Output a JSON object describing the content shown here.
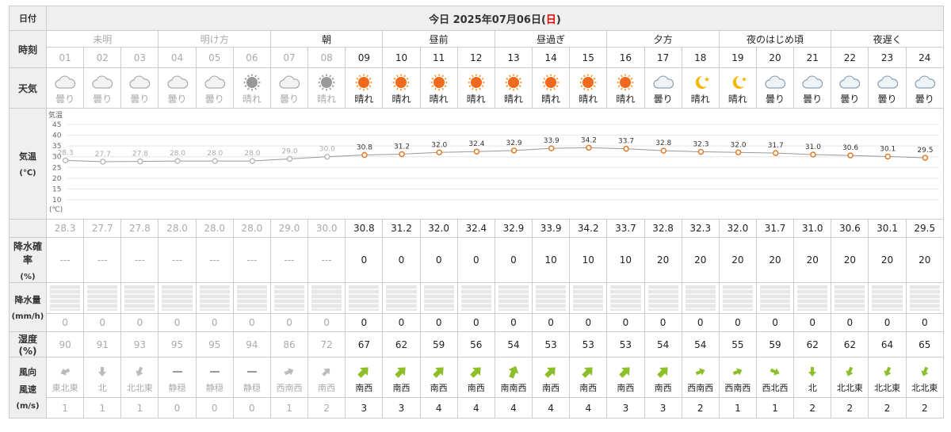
{
  "header": {
    "date_label": "日付",
    "today_prefix": "今日 2025年07月06日(",
    "weekday": "日",
    "today_suffix": ")"
  },
  "row_labels": {
    "time": "時刻",
    "weather": "天気",
    "temp": "気温",
    "temp_unit": "(℃)",
    "prob": "降水確率",
    "prob_unit": "(%)",
    "rain": "降水量",
    "rain_unit": "(mm/h)",
    "humidity": "湿度(%)",
    "wind": "風向",
    "speed": "風速",
    "speed_unit": "(m/s)"
  },
  "periods": [
    {
      "label": "未明",
      "span": 3,
      "past": true
    },
    {
      "label": "明け方",
      "span": 3,
      "past": true
    },
    {
      "label": "朝",
      "span": 3,
      "past": false
    },
    {
      "label": "昼前",
      "span": 3,
      "past": false
    },
    {
      "label": "昼過ぎ",
      "span": 3,
      "past": false
    },
    {
      "label": "夕方",
      "span": 3,
      "past": false
    },
    {
      "label": "夜のはじめ頃",
      "span": 3,
      "past": false
    },
    {
      "label": "夜遅く",
      "span": 3,
      "past": false
    }
  ],
  "hours": [
    {
      "hour": "01",
      "past": true,
      "weather": "曇り",
      "icon": "cloud-icon",
      "temp": "28.3",
      "prob": "---",
      "rain": "0",
      "humidity": "90",
      "wind_dir": "東北東",
      "wind_speed": "1",
      "wind_icon": "wind-arrow-icon"
    },
    {
      "hour": "02",
      "past": true,
      "weather": "曇り",
      "icon": "cloud-icon",
      "temp": "27.7",
      "prob": "---",
      "rain": "0",
      "humidity": "91",
      "wind_dir": "北",
      "wind_speed": "1",
      "wind_icon": "wind-arrow-icon"
    },
    {
      "hour": "03",
      "past": true,
      "weather": "曇り",
      "icon": "cloud-icon",
      "temp": "27.8",
      "prob": "---",
      "rain": "0",
      "humidity": "93",
      "wind_dir": "北北東",
      "wind_speed": "1",
      "wind_icon": "wind-arrow-icon"
    },
    {
      "hour": "04",
      "past": true,
      "weather": "曇り",
      "icon": "cloud-icon",
      "temp": "28.0",
      "prob": "---",
      "rain": "0",
      "humidity": "95",
      "wind_dir": "静穏",
      "wind_speed": "0",
      "wind_icon": "calm-icon"
    },
    {
      "hour": "05",
      "past": true,
      "weather": "曇り",
      "icon": "cloud-icon",
      "temp": "28.0",
      "prob": "---",
      "rain": "0",
      "humidity": "95",
      "wind_dir": "静穏",
      "wind_speed": "0",
      "wind_icon": "calm-icon"
    },
    {
      "hour": "06",
      "past": true,
      "weather": "晴れ",
      "icon": "sun-icon",
      "temp": "28.0",
      "prob": "---",
      "rain": "0",
      "humidity": "94",
      "wind_dir": "静穏",
      "wind_speed": "0",
      "wind_icon": "calm-icon"
    },
    {
      "hour": "07",
      "past": true,
      "weather": "曇り",
      "icon": "cloud-icon",
      "temp": "29.0",
      "prob": "---",
      "rain": "0",
      "humidity": "86",
      "wind_dir": "西南西",
      "wind_speed": "1",
      "wind_icon": "wind-arrow-icon"
    },
    {
      "hour": "08",
      "past": true,
      "weather": "晴れ",
      "icon": "sun-icon",
      "temp": "30.0",
      "prob": "---",
      "rain": "0",
      "humidity": "72",
      "wind_dir": "南西",
      "wind_speed": "2",
      "wind_icon": "wind-arrow-icon"
    },
    {
      "hour": "09",
      "past": false,
      "weather": "晴れ",
      "icon": "sun-icon",
      "temp": "30.8",
      "prob": "0",
      "rain": "0",
      "humidity": "67",
      "wind_dir": "南西",
      "wind_speed": "3",
      "wind_icon": "wind-arrow-icon"
    },
    {
      "hour": "10",
      "past": false,
      "weather": "晴れ",
      "icon": "sun-icon",
      "temp": "31.2",
      "prob": "0",
      "rain": "0",
      "humidity": "62",
      "wind_dir": "南西",
      "wind_speed": "3",
      "wind_icon": "wind-arrow-icon"
    },
    {
      "hour": "11",
      "past": false,
      "weather": "晴れ",
      "icon": "sun-icon",
      "temp": "32.0",
      "prob": "0",
      "rain": "0",
      "humidity": "59",
      "wind_dir": "南西",
      "wind_speed": "4",
      "wind_icon": "wind-arrow-icon"
    },
    {
      "hour": "12",
      "past": false,
      "weather": "晴れ",
      "icon": "sun-icon",
      "temp": "32.4",
      "prob": "0",
      "rain": "0",
      "humidity": "56",
      "wind_dir": "南西",
      "wind_speed": "4",
      "wind_icon": "wind-arrow-icon"
    },
    {
      "hour": "13",
      "past": false,
      "weather": "晴れ",
      "icon": "sun-icon",
      "temp": "32.9",
      "prob": "0",
      "rain": "0",
      "humidity": "54",
      "wind_dir": "南南西",
      "wind_speed": "4",
      "wind_icon": "wind-arrow-icon"
    },
    {
      "hour": "14",
      "past": false,
      "weather": "晴れ",
      "icon": "sun-icon",
      "temp": "33.9",
      "prob": "10",
      "rain": "0",
      "humidity": "53",
      "wind_dir": "南西",
      "wind_speed": "4",
      "wind_icon": "wind-arrow-icon"
    },
    {
      "hour": "15",
      "past": false,
      "weather": "晴れ",
      "icon": "sun-icon",
      "temp": "34.2",
      "prob": "10",
      "rain": "0",
      "humidity": "53",
      "wind_dir": "南西",
      "wind_speed": "4",
      "wind_icon": "wind-arrow-icon"
    },
    {
      "hour": "16",
      "past": false,
      "weather": "晴れ",
      "icon": "sun-icon",
      "temp": "33.7",
      "prob": "10",
      "rain": "0",
      "humidity": "53",
      "wind_dir": "南西",
      "wind_speed": "3",
      "wind_icon": "wind-arrow-icon"
    },
    {
      "hour": "17",
      "past": false,
      "weather": "曇り",
      "icon": "cloud-icon",
      "temp": "32.8",
      "prob": "20",
      "rain": "0",
      "humidity": "54",
      "wind_dir": "南西",
      "wind_speed": "3",
      "wind_icon": "wind-arrow-icon"
    },
    {
      "hour": "18",
      "past": false,
      "weather": "晴れ",
      "icon": "moon-icon",
      "temp": "32.3",
      "prob": "20",
      "rain": "0",
      "humidity": "54",
      "wind_dir": "西南西",
      "wind_speed": "2",
      "wind_icon": "wind-arrow-icon"
    },
    {
      "hour": "19",
      "past": false,
      "weather": "晴れ",
      "icon": "moon-icon",
      "temp": "32.0",
      "prob": "20",
      "rain": "0",
      "humidity": "55",
      "wind_dir": "西南西",
      "wind_speed": "1",
      "wind_icon": "wind-arrow-icon"
    },
    {
      "hour": "20",
      "past": false,
      "weather": "曇り",
      "icon": "cloud-icon",
      "temp": "31.7",
      "prob": "20",
      "rain": "0",
      "humidity": "59",
      "wind_dir": "西北西",
      "wind_speed": "1",
      "wind_icon": "wind-arrow-icon"
    },
    {
      "hour": "21",
      "past": false,
      "weather": "曇り",
      "icon": "cloud-icon",
      "temp": "31.0",
      "prob": "20",
      "rain": "0",
      "humidity": "62",
      "wind_dir": "北",
      "wind_speed": "2",
      "wind_icon": "wind-arrow-icon"
    },
    {
      "hour": "22",
      "past": false,
      "weather": "曇り",
      "icon": "cloud-icon",
      "temp": "30.6",
      "prob": "20",
      "rain": "0",
      "humidity": "62",
      "wind_dir": "北北東",
      "wind_speed": "2",
      "wind_icon": "wind-arrow-icon"
    },
    {
      "hour": "23",
      "past": false,
      "weather": "曇り",
      "icon": "cloud-icon",
      "temp": "30.1",
      "prob": "20",
      "rain": "0",
      "humidity": "64",
      "wind_dir": "北北東",
      "wind_speed": "2",
      "wind_icon": "wind-arrow-icon"
    },
    {
      "hour": "24",
      "past": false,
      "weather": "曇り",
      "icon": "cloud-icon",
      "temp": "29.5",
      "prob": "20",
      "rain": "0",
      "humidity": "65",
      "wind_dir": "北北東",
      "wind_speed": "2",
      "wind_icon": "wind-arrow-icon"
    }
  ],
  "chart_data": {
    "type": "line",
    "title": "気温",
    "ylabel": "(℃)",
    "ylim": [
      10,
      45
    ],
    "yticks": [
      "45",
      "40",
      "35",
      "30",
      "25",
      "20",
      "15",
      "10"
    ],
    "x": [
      "01",
      "02",
      "03",
      "04",
      "05",
      "06",
      "07",
      "08",
      "09",
      "10",
      "11",
      "12",
      "13",
      "14",
      "15",
      "16",
      "17",
      "18",
      "19",
      "20",
      "21",
      "22",
      "23",
      "24"
    ],
    "series": [
      {
        "values": [
          28.3,
          27.7,
          27.8,
          28.0,
          28.0,
          28.0,
          29.0,
          30.0,
          30.8,
          31.2,
          32.0,
          32.4,
          32.9,
          33.9,
          34.2,
          33.7,
          32.8,
          32.3,
          32.0,
          31.7,
          31.0,
          30.6,
          30.1,
          29.5
        ]
      }
    ],
    "past_count": 8,
    "colors": {
      "past": "#bbbbbb",
      "future": "#e07b2a",
      "line": "#999999"
    }
  }
}
